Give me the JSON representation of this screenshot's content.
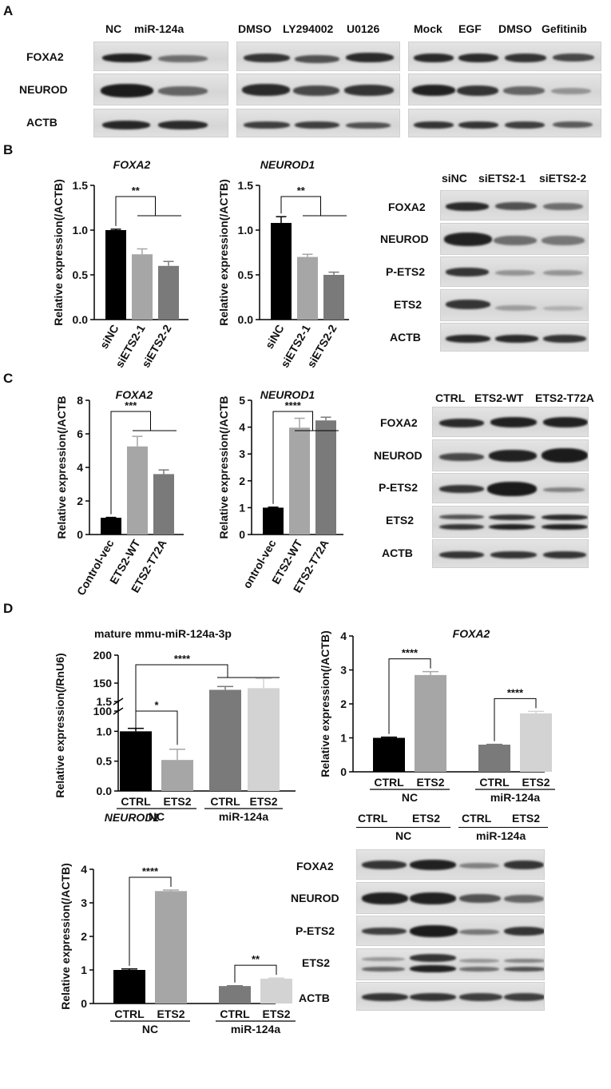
{
  "panels": {
    "A": "A",
    "B": "B",
    "C": "C",
    "D": "D"
  },
  "a": {
    "g1_lanes": [
      "NC",
      "miR-124a"
    ],
    "g2_lanes": [
      "DMSO",
      "LY294002",
      "U0126"
    ],
    "g3_lanes": [
      "Mock",
      "EGF",
      "DMSO",
      "Gefitinib"
    ],
    "rows": [
      "FOXA2",
      "NEUROD",
      "ACTB"
    ]
  },
  "b": {
    "blot_lanes": [
      "siNC",
      "siETS2-1",
      "siETS2-2"
    ],
    "blot_rows": [
      "FOXA2",
      "NEUROD",
      "P-ETS2",
      "ETS2",
      "ACTB"
    ]
  },
  "c": {
    "blot_lanes": [
      "CTRL",
      "ETS2-WT",
      "ETS2-T72A"
    ],
    "blot_rows": [
      "FOXA2",
      "NEUROD",
      "P-ETS2",
      "ETS2",
      "ACTB"
    ]
  },
  "d": {
    "blot_lanes": [
      "CTRL",
      "ETS2",
      "CTRL",
      "ETS2"
    ],
    "blot_groups": [
      "NC",
      "miR-124a"
    ],
    "blot_rows": [
      "FOXA2",
      "NEUROD",
      "P-ETS2",
      "ETS2",
      "ACTB"
    ]
  },
  "chart_data": [
    {
      "id": "B-FOXA2",
      "type": "bar",
      "title": "FOXA2",
      "ylabel": "Relative expression(/ACTB)",
      "categories": [
        "siNC",
        "siETS2-1",
        "siETS2-2"
      ],
      "values": [
        1.0,
        0.73,
        0.6
      ],
      "errors": [
        0.01,
        0.06,
        0.05
      ],
      "ylim": [
        0,
        1.5
      ],
      "yticks": [
        "0.0",
        "0.5",
        "1.0",
        "1.5"
      ],
      "colors": [
        "#000000",
        "#a6a6a6",
        "#7a7a7a"
      ],
      "significance": [
        "**"
      ]
    },
    {
      "id": "B-NEUROD1",
      "type": "bar",
      "title": "NEUROD1",
      "ylabel": "Relative expression(/ACTB)",
      "categories": [
        "siNC",
        "siETS2-1",
        "siETS2-2"
      ],
      "values": [
        1.08,
        0.7,
        0.5
      ],
      "errors": [
        0.07,
        0.03,
        0.03
      ],
      "ylim": [
        0,
        1.5
      ],
      "yticks": [
        "0.0",
        "0.5",
        "1.0",
        "1.5"
      ],
      "colors": [
        "#000000",
        "#a6a6a6",
        "#7a7a7a"
      ],
      "significance": [
        "**"
      ]
    },
    {
      "id": "C-FOXA2",
      "type": "bar",
      "title": "FOXA2",
      "ylabel": "Relative expression(/ACTB",
      "categories": [
        "Control-vec",
        "ETS2-WT",
        "ETS2-T72A"
      ],
      "values": [
        1.0,
        5.25,
        3.6
      ],
      "errors": [
        0.02,
        0.6,
        0.25
      ],
      "ylim": [
        0,
        8
      ],
      "yticks": [
        "0",
        "2",
        "4",
        "6",
        "8"
      ],
      "colors": [
        "#000000",
        "#a6a6a6",
        "#7a7a7a"
      ],
      "significance": [
        "***"
      ]
    },
    {
      "id": "C-NEUROD1",
      "type": "bar",
      "title": "NEUROD1",
      "ylabel": "Relative expression(/ACTB",
      "categories": [
        "ontrol-vec",
        "ETS2-WT",
        "ETS2-T72A"
      ],
      "values": [
        1.0,
        3.98,
        4.25
      ],
      "errors": [
        0.02,
        0.35,
        0.12
      ],
      "ylim": [
        0,
        5
      ],
      "yticks": [
        "0",
        "1",
        "2",
        "3",
        "4",
        "5"
      ],
      "colors": [
        "#000000",
        "#a6a6a6",
        "#7a7a7a"
      ],
      "significance": [
        "****"
      ]
    },
    {
      "id": "D-miR",
      "type": "bar",
      "title": "mature mmu-miR-124a-3p",
      "ylabel": "Relative expression(/RnU6)",
      "categories": [
        "CTRL",
        "ETS2",
        "CTRL",
        "ETS2"
      ],
      "groups": [
        "NC",
        "miR-124a"
      ],
      "values": [
        1.0,
        0.52,
        138,
        141
      ],
      "errors": [
        0.05,
        0.18,
        6,
        17
      ],
      "ylim_lower": [
        0,
        1.5
      ],
      "ylim_upper": [
        100,
        200
      ],
      "yticks": [
        "0.0",
        "0.5",
        "1.0",
        "1.5",
        "100",
        "150",
        "200"
      ],
      "colors": [
        "#000000",
        "#a6a6a6",
        "#7a7a7a",
        "#d3d3d3"
      ],
      "significance": [
        "****",
        "*"
      ]
    },
    {
      "id": "D-FOXA2",
      "type": "bar",
      "title": "FOXA2",
      "ylabel": "Relative expression(/ACTB)",
      "categories": [
        "CTRL",
        "ETS2",
        "CTRL",
        "ETS2"
      ],
      "groups": [
        "NC",
        "miR-124a"
      ],
      "values": [
        1.0,
        2.85,
        0.8,
        1.72
      ],
      "errors": [
        0.02,
        0.1,
        0.01,
        0.06
      ],
      "ylim": [
        0,
        4
      ],
      "yticks": [
        "0",
        "1",
        "2",
        "3",
        "4"
      ],
      "colors": [
        "#000000",
        "#a6a6a6",
        "#7a7a7a",
        "#d3d3d3"
      ],
      "significance": [
        "****",
        "****"
      ]
    },
    {
      "id": "D-NEUROD1",
      "type": "bar",
      "title": "NEUROD1",
      "ylabel": "Relative expression(/ACTB)",
      "categories": [
        "CTRL",
        "ETS2",
        "CTRL",
        "ETS2"
      ],
      "groups": [
        "NC",
        "miR-124a"
      ],
      "values": [
        1.0,
        3.35,
        0.52,
        0.74
      ],
      "errors": [
        0.03,
        0.03,
        0.01,
        0.02
      ],
      "ylim": [
        0,
        4
      ],
      "yticks": [
        "0",
        "1",
        "2",
        "3",
        "4"
      ],
      "colors": [
        "#000000",
        "#a6a6a6",
        "#7a7a7a",
        "#d3d3d3"
      ],
      "significance": [
        "****",
        "**"
      ]
    }
  ]
}
